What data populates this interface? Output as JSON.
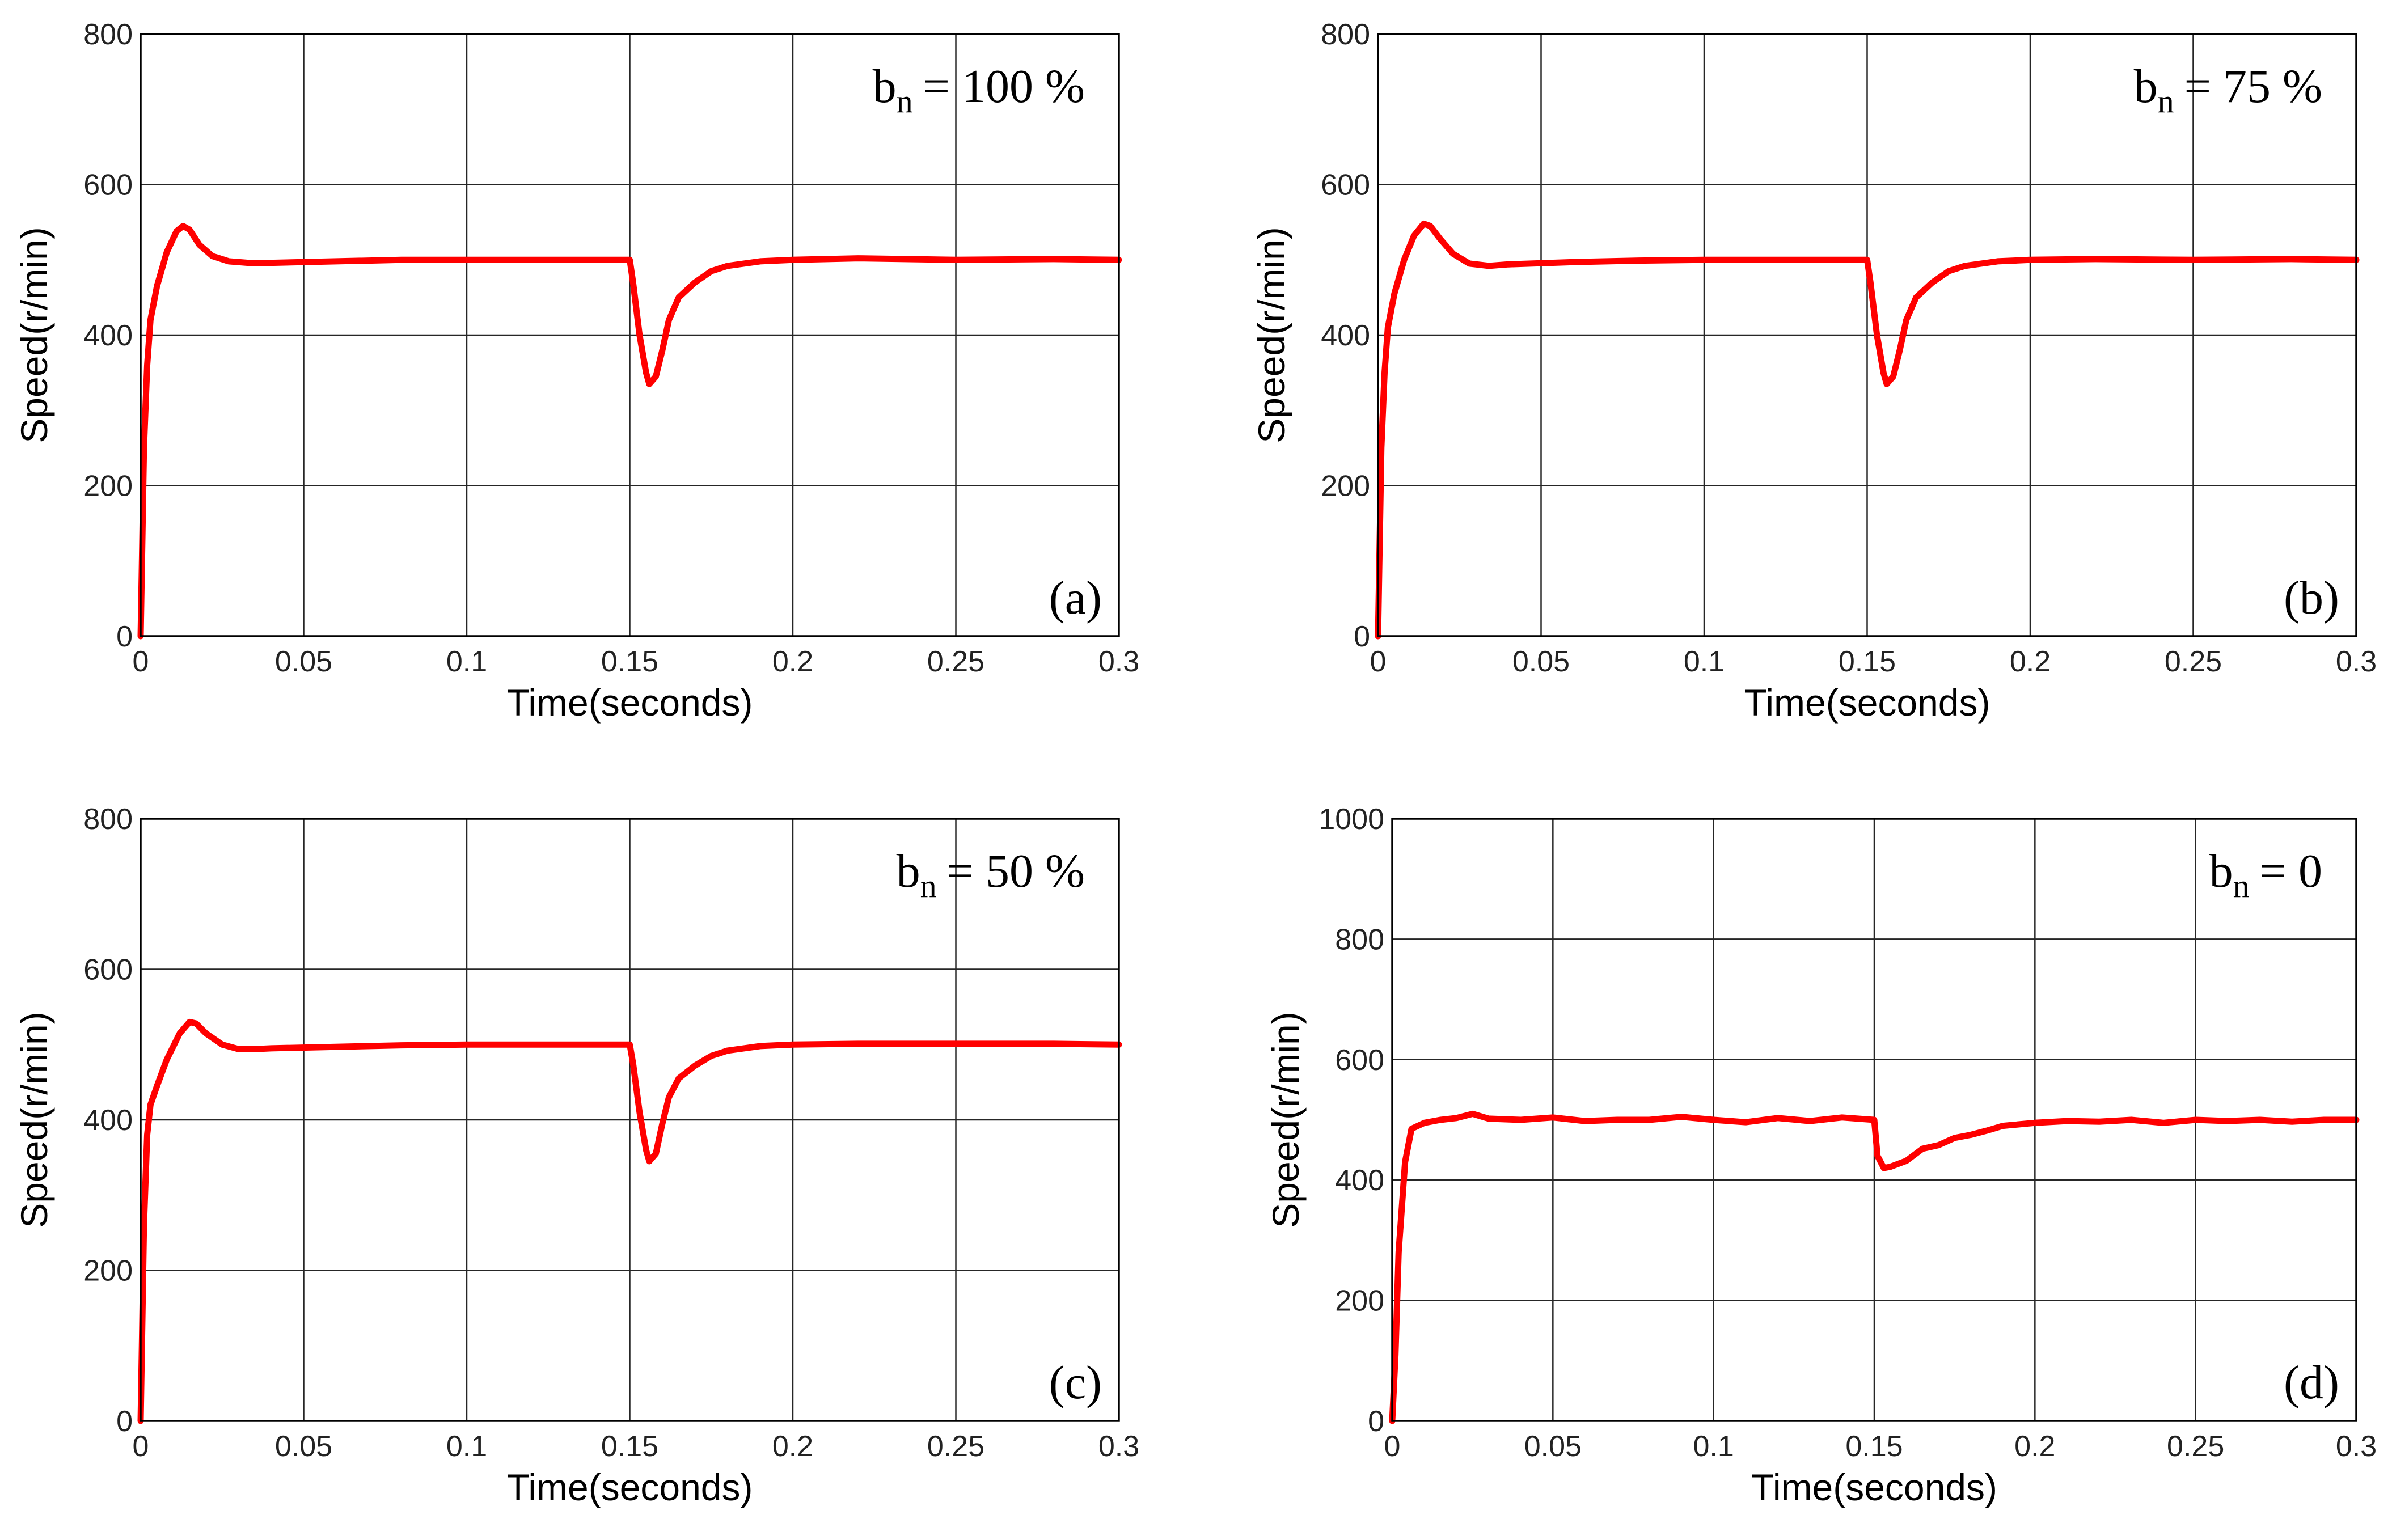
{
  "figure": {
    "colors": {
      "trace": "#ff0000",
      "grid": "#262626",
      "background": "#ffffff"
    }
  },
  "chart_data": [
    {
      "type": "line",
      "panel_label": "(a)",
      "annotation": {
        "var": "b",
        "sub": "n",
        "value": "= 100 %"
      },
      "xlabel": "Time(seconds)",
      "ylabel": "Speed(r/min)",
      "xlim": [
        0,
        0.3
      ],
      "ylim": [
        0,
        800
      ],
      "xticks": [
        "0",
        "0.05",
        "0.1",
        "0.15",
        "0.2",
        "0.25",
        "0.3"
      ],
      "yticks": [
        "0",
        "200",
        "400",
        "600",
        "800"
      ],
      "grid": true,
      "series": [
        {
          "name": "Speed",
          "x": [
            0,
            0.001,
            0.002,
            0.003,
            0.005,
            0.008,
            0.011,
            0.013,
            0.015,
            0.018,
            0.022,
            0.027,
            0.033,
            0.04,
            0.06,
            0.08,
            0.1,
            0.12,
            0.14,
            0.15,
            0.151,
            0.153,
            0.155,
            0.156,
            0.158,
            0.16,
            0.162,
            0.165,
            0.17,
            0.175,
            0.18,
            0.19,
            0.2,
            0.22,
            0.25,
            0.28,
            0.3
          ],
          "values": [
            0,
            250,
            360,
            420,
            465,
            510,
            538,
            545,
            540,
            520,
            505,
            498,
            496,
            496,
            498,
            500,
            500,
            500,
            500,
            500,
            470,
            400,
            350,
            335,
            345,
            380,
            420,
            450,
            470,
            485,
            492,
            498,
            500,
            502,
            500,
            501,
            500
          ]
        }
      ]
    },
    {
      "type": "line",
      "panel_label": "(b)",
      "annotation": {
        "var": "b",
        "sub": "n",
        "value": "= 75 %"
      },
      "xlabel": "Time(seconds)",
      "ylabel": "Speed(r/min)",
      "xlim": [
        0,
        0.3
      ],
      "ylim": [
        0,
        800
      ],
      "xticks": [
        "0",
        "0.05",
        "0.1",
        "0.15",
        "0.2",
        "0.25",
        "0.3"
      ],
      "yticks": [
        "0",
        "200",
        "400",
        "600",
        "800"
      ],
      "grid": true,
      "series": [
        {
          "name": "Speed",
          "x": [
            0,
            0.001,
            0.002,
            0.003,
            0.005,
            0.008,
            0.011,
            0.014,
            0.016,
            0.019,
            0.023,
            0.028,
            0.034,
            0.04,
            0.06,
            0.08,
            0.1,
            0.12,
            0.14,
            0.15,
            0.151,
            0.153,
            0.155,
            0.156,
            0.158,
            0.16,
            0.162,
            0.165,
            0.17,
            0.175,
            0.18,
            0.19,
            0.2,
            0.22,
            0.25,
            0.28,
            0.3
          ],
          "values": [
            0,
            250,
            350,
            410,
            455,
            500,
            532,
            548,
            545,
            528,
            508,
            495,
            492,
            494,
            497,
            499,
            500,
            500,
            500,
            500,
            470,
            400,
            350,
            335,
            345,
            380,
            420,
            450,
            470,
            485,
            492,
            498,
            500,
            501,
            500,
            501,
            500
          ]
        }
      ]
    },
    {
      "type": "line",
      "panel_label": "(c)",
      "annotation": {
        "var": "b",
        "sub": "n",
        "value": "= 50 %"
      },
      "xlabel": "Time(seconds)",
      "ylabel": "Speed(r/min)",
      "xlim": [
        0,
        0.3
      ],
      "ylim": [
        0,
        800
      ],
      "xticks": [
        "0",
        "0.05",
        "0.1",
        "0.15",
        "0.2",
        "0.25",
        "0.3"
      ],
      "yticks": [
        "0",
        "200",
        "400",
        "600",
        "800"
      ],
      "grid": true,
      "series": [
        {
          "name": "Speed",
          "x": [
            0,
            0.001,
            0.002,
            0.003,
            0.005,
            0.008,
            0.012,
            0.015,
            0.017,
            0.02,
            0.025,
            0.03,
            0.035,
            0.04,
            0.06,
            0.08,
            0.1,
            0.12,
            0.14,
            0.15,
            0.151,
            0.153,
            0.155,
            0.156,
            0.158,
            0.16,
            0.162,
            0.165,
            0.17,
            0.175,
            0.18,
            0.19,
            0.2,
            0.22,
            0.25,
            0.28,
            0.3
          ],
          "values": [
            0,
            260,
            380,
            420,
            445,
            480,
            515,
            530,
            528,
            515,
            500,
            494,
            494,
            495,
            497,
            499,
            500,
            500,
            500,
            500,
            475,
            410,
            360,
            345,
            355,
            395,
            430,
            455,
            472,
            485,
            492,
            498,
            500,
            501,
            501,
            501,
            500
          ]
        }
      ]
    },
    {
      "type": "line",
      "panel_label": "(d)",
      "annotation": {
        "var": "b",
        "sub": "n",
        "value": "= 0"
      },
      "xlabel": "Time(seconds)",
      "ylabel": "Speed(r/min)",
      "xlim": [
        0,
        0.3
      ],
      "ylim": [
        0,
        1000
      ],
      "xticks": [
        "0",
        "0.05",
        "0.1",
        "0.15",
        "0.2",
        "0.25",
        "0.3"
      ],
      "yticks": [
        "0",
        "200",
        "400",
        "600",
        "800",
        "1000"
      ],
      "grid": true,
      "series": [
        {
          "name": "Speed",
          "x": [
            0,
            0.001,
            0.002,
            0.004,
            0.006,
            0.01,
            0.015,
            0.02,
            0.025,
            0.03,
            0.04,
            0.05,
            0.06,
            0.07,
            0.08,
            0.09,
            0.1,
            0.11,
            0.12,
            0.13,
            0.14,
            0.15,
            0.151,
            0.153,
            0.155,
            0.16,
            0.165,
            0.17,
            0.175,
            0.18,
            0.185,
            0.19,
            0.2,
            0.21,
            0.22,
            0.23,
            0.24,
            0.25,
            0.26,
            0.27,
            0.28,
            0.29,
            0.3
          ],
          "values": [
            0,
            110,
            280,
            430,
            485,
            495,
            500,
            503,
            510,
            502,
            500,
            504,
            498,
            500,
            500,
            505,
            500,
            496,
            503,
            498,
            504,
            500,
            440,
            420,
            422,
            432,
            452,
            458,
            470,
            475,
            482,
            490,
            495,
            498,
            497,
            500,
            495,
            500,
            498,
            500,
            497,
            500,
            500
          ]
        }
      ]
    }
  ]
}
